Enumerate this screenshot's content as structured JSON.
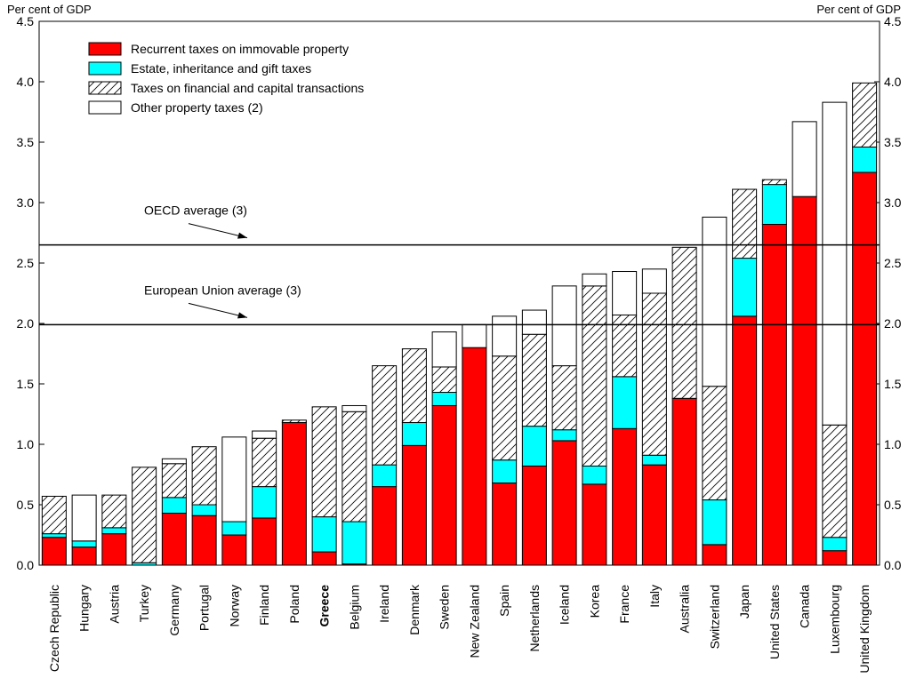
{
  "chart_data": {
    "type": "bar",
    "stacked": true,
    "y_axis_label_left": "Per cent of GDP",
    "y_axis_label_right": "Per cent of GDP",
    "ylim": [
      0,
      4.5
    ],
    "yticks": [
      "0.0",
      "0.5",
      "1.0",
      "1.5",
      "2.0",
      "2.5",
      "3.0",
      "3.5",
      "4.0",
      "4.5"
    ],
    "legend_position": "top-left",
    "categories": [
      "Czech Republic",
      "Hungary",
      "Austria",
      "Turkey",
      "Germany",
      "Portugal",
      "Norway",
      "Finland",
      "Poland",
      "Greece",
      "Belgium",
      "Ireland",
      "Denmark",
      "Sweden",
      "New Zealand",
      "Spain",
      "Netherlands",
      "Iceland",
      "Korea",
      "France",
      "Italy",
      "Australia",
      "Switzerland",
      "Japan",
      "United States",
      "Canada",
      "Luxembourg",
      "United Kingdom"
    ],
    "highlighted_category": "Greece",
    "series": [
      {
        "name": "Recurrent taxes on immovable property",
        "color": "#ff0000",
        "pattern": "solid",
        "values": [
          0.23,
          0.15,
          0.26,
          0.0,
          0.43,
          0.41,
          0.25,
          0.39,
          1.18,
          0.11,
          0.01,
          0.65,
          0.99,
          1.32,
          1.8,
          0.68,
          0.82,
          1.03,
          0.67,
          1.13,
          0.83,
          1.38,
          0.17,
          2.06,
          2.82,
          3.05,
          0.12,
          3.25
        ]
      },
      {
        "name": "Estate, inheritance and gift taxes",
        "color": "#00ffff",
        "pattern": "solid",
        "values": [
          0.03,
          0.05,
          0.05,
          0.02,
          0.13,
          0.09,
          0.11,
          0.26,
          0.0,
          0.29,
          0.35,
          0.18,
          0.19,
          0.11,
          0.0,
          0.19,
          0.33,
          0.09,
          0.15,
          0.43,
          0.08,
          0.0,
          0.37,
          0.48,
          0.33,
          0.0,
          0.11,
          0.21
        ]
      },
      {
        "name": "Taxes on financial and capital transactions",
        "color": "#ffffff",
        "pattern": "hatched",
        "values": [
          0.31,
          0.0,
          0.27,
          0.79,
          0.28,
          0.48,
          0.0,
          0.4,
          0.02,
          0.91,
          0.91,
          0.82,
          0.61,
          0.21,
          0.0,
          0.86,
          0.76,
          0.53,
          1.49,
          0.51,
          1.34,
          1.25,
          0.94,
          0.57,
          0.04,
          0.0,
          0.93,
          0.53
        ]
      },
      {
        "name": "Other property taxes (2)",
        "color": "#ffffff",
        "pattern": "solid",
        "values": [
          0.0,
          0.38,
          0.0,
          0.0,
          0.04,
          0.0,
          0.7,
          0.06,
          0.0,
          0.0,
          0.05,
          0.0,
          0.0,
          0.29,
          0.19,
          0.33,
          0.2,
          0.66,
          0.1,
          0.36,
          0.2,
          0.0,
          1.4,
          0.0,
          0.0,
          0.62,
          2.67,
          0.0
        ]
      }
    ],
    "reference_lines": [
      {
        "label": "OECD average (3)",
        "value": 2.65
      },
      {
        "label": "European Union average (3)",
        "value": 1.99
      }
    ]
  }
}
